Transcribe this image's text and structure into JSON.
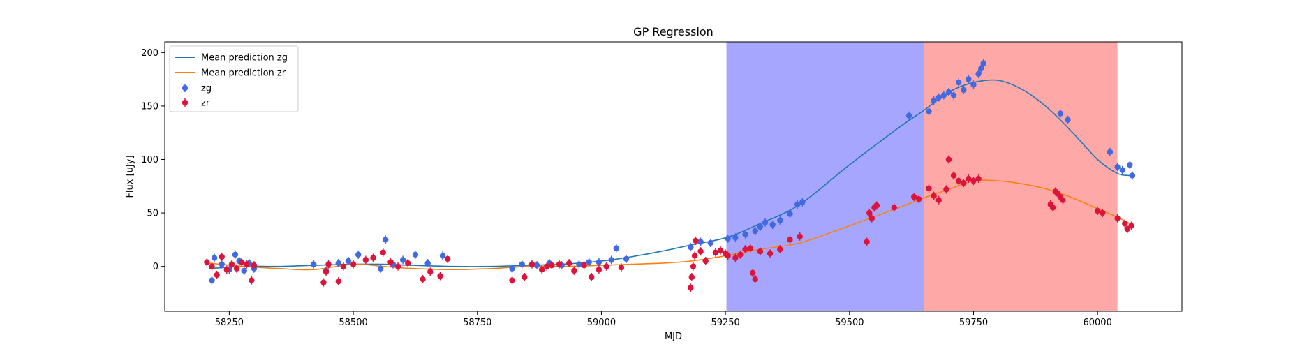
{
  "chart_data": {
    "type": "scatter",
    "title": "GP Regression",
    "xlabel": "MJD",
    "ylabel": "Flux [uJy]",
    "xlim": [
      58120,
      60170
    ],
    "ylim": [
      -42,
      210
    ],
    "xticks": [
      58250,
      58500,
      58750,
      59000,
      59250,
      59500,
      59750,
      60000
    ],
    "yticks": [
      0,
      50,
      100,
      150,
      200
    ],
    "grid": false,
    "legend_position": "top-left",
    "legend": [
      "Mean prediction zg",
      "Mean prediction zr",
      "zg",
      "zr"
    ],
    "colors": {
      "zg_line": "#1f77b4",
      "zr_line": "#ff7f0e",
      "zg_points": "#4169e1",
      "zr_points": "#dc143c",
      "blue_band": "#7777ff",
      "red_band": "#ff6e6e"
    },
    "shaded_regions": [
      {
        "x0": 59252,
        "x1": 59650,
        "color": "#7777ff",
        "opacity": 0.65
      },
      {
        "x0": 59650,
        "x1": 60040,
        "color": "#ff6e6e",
        "opacity": 0.6
      }
    ],
    "series": [
      {
        "name": "Mean prediction zg",
        "kind": "line",
        "x": [
          58210,
          58280,
          58350,
          58420,
          58500,
          58560,
          58620,
          58700,
          58780,
          58850,
          58920,
          59000,
          59060,
          59120,
          59180,
          59252,
          59320,
          59400,
          59500,
          59600,
          59650,
          59700,
          59750,
          59800,
          59850,
          59900,
          59950,
          60000,
          60040,
          60065
        ],
        "y": [
          -2,
          0,
          0,
          1,
          2,
          2,
          1,
          0,
          0,
          1,
          2,
          5,
          9,
          14,
          20,
          27,
          40,
          58,
          95,
          130,
          146,
          163,
          172,
          174,
          165,
          148,
          125,
          100,
          87,
          85
        ]
      },
      {
        "name": "Mean prediction zr",
        "kind": "line",
        "x": [
          58210,
          58280,
          58350,
          58420,
          58500,
          58560,
          58620,
          58700,
          58780,
          58850,
          58920,
          59000,
          59060,
          59120,
          59180,
          59252,
          59320,
          59400,
          59500,
          59600,
          59650,
          59700,
          59750,
          59800,
          59850,
          59900,
          59950,
          60000,
          60040,
          60065
        ],
        "y": [
          3,
          0,
          -2,
          -3,
          2,
          0,
          -2,
          -3,
          -2,
          0,
          0,
          1,
          2,
          3,
          5,
          10,
          16,
          22,
          38,
          55,
          64,
          72,
          80,
          80,
          77,
          72,
          64,
          54,
          46,
          40
        ]
      },
      {
        "name": "zg",
        "kind": "points",
        "points": [
          [
            58215,
            -13
          ],
          [
            58220,
            8
          ],
          [
            58235,
            2
          ],
          [
            58250,
            -3
          ],
          [
            58262,
            11
          ],
          [
            58270,
            5
          ],
          [
            58280,
            -4
          ],
          [
            58290,
            3
          ],
          [
            58300,
            -2
          ],
          [
            58420,
            2
          ],
          [
            58445,
            -4
          ],
          [
            58470,
            3
          ],
          [
            58490,
            5
          ],
          [
            58510,
            11
          ],
          [
            58555,
            -2
          ],
          [
            58565,
            25
          ],
          [
            58580,
            2
          ],
          [
            58600,
            6
          ],
          [
            58625,
            11
          ],
          [
            58650,
            3
          ],
          [
            58680,
            10
          ],
          [
            58820,
            -2
          ],
          [
            58840,
            2
          ],
          [
            58870,
            1
          ],
          [
            58895,
            3
          ],
          [
            58920,
            1
          ],
          [
            58955,
            2
          ],
          [
            58975,
            4
          ],
          [
            58995,
            4
          ],
          [
            59020,
            6
          ],
          [
            59030,
            17
          ],
          [
            59050,
            7
          ],
          [
            59180,
            18
          ],
          [
            59200,
            23
          ],
          [
            59220,
            22
          ],
          [
            59255,
            26
          ],
          [
            59270,
            27
          ],
          [
            59290,
            30
          ],
          [
            59310,
            33
          ],
          [
            59320,
            37
          ],
          [
            59330,
            41
          ],
          [
            59345,
            39
          ],
          [
            59360,
            43
          ],
          [
            59380,
            49
          ],
          [
            59395,
            58
          ],
          [
            59405,
            60
          ],
          [
            59620,
            141
          ],
          [
            59660,
            145
          ],
          [
            59670,
            155
          ],
          [
            59680,
            158
          ],
          [
            59690,
            160
          ],
          [
            59700,
            163
          ],
          [
            59710,
            160
          ],
          [
            59720,
            172
          ],
          [
            59730,
            165
          ],
          [
            59740,
            175
          ],
          [
            59750,
            170
          ],
          [
            59760,
            180
          ],
          [
            59765,
            185
          ],
          [
            59770,
            190
          ],
          [
            59925,
            143
          ],
          [
            59940,
            137
          ],
          [
            60025,
            107
          ],
          [
            60040,
            93
          ],
          [
            60050,
            90
          ],
          [
            60065,
            95
          ],
          [
            60070,
            85
          ]
        ]
      },
      {
        "name": "zr",
        "kind": "points",
        "points": [
          [
            58205,
            4
          ],
          [
            58215,
            0
          ],
          [
            58225,
            -8
          ],
          [
            58235,
            9
          ],
          [
            58245,
            -3
          ],
          [
            58255,
            2
          ],
          [
            58265,
            -2
          ],
          [
            58275,
            4
          ],
          [
            58285,
            2
          ],
          [
            58295,
            -13
          ],
          [
            58300,
            1
          ],
          [
            58440,
            -15
          ],
          [
            58445,
            -5
          ],
          [
            58450,
            2
          ],
          [
            58470,
            -14
          ],
          [
            58480,
            0
          ],
          [
            58500,
            2
          ],
          [
            58525,
            6
          ],
          [
            58540,
            8
          ],
          [
            58560,
            13
          ],
          [
            58575,
            4
          ],
          [
            58590,
            0
          ],
          [
            58610,
            3
          ],
          [
            58640,
            -12
          ],
          [
            58655,
            -5
          ],
          [
            58675,
            -9
          ],
          [
            58690,
            7
          ],
          [
            58820,
            -13
          ],
          [
            58845,
            -10
          ],
          [
            58860,
            2
          ],
          [
            58880,
            -3
          ],
          [
            58890,
            0
          ],
          [
            58900,
            1
          ],
          [
            58915,
            2
          ],
          [
            58935,
            3
          ],
          [
            58945,
            -4
          ],
          [
            58965,
            1
          ],
          [
            58980,
            -10
          ],
          [
            58995,
            -3
          ],
          [
            59010,
            0
          ],
          [
            59040,
            -1
          ],
          [
            59180,
            -20
          ],
          [
            59182,
            -10
          ],
          [
            59185,
            0
          ],
          [
            59188,
            10
          ],
          [
            59190,
            24
          ],
          [
            59200,
            14
          ],
          [
            59210,
            5
          ],
          [
            59230,
            13
          ],
          [
            59240,
            15
          ],
          [
            59250,
            12
          ],
          [
            59255,
            10
          ],
          [
            59270,
            8
          ],
          [
            59280,
            11
          ],
          [
            59290,
            16
          ],
          [
            59300,
            17
          ],
          [
            59305,
            -6
          ],
          [
            59310,
            -12
          ],
          [
            59320,
            14
          ],
          [
            59340,
            12
          ],
          [
            59360,
            16
          ],
          [
            59380,
            25
          ],
          [
            59400,
            28
          ],
          [
            59535,
            23
          ],
          [
            59540,
            50
          ],
          [
            59545,
            45
          ],
          [
            59550,
            55
          ],
          [
            59555,
            57
          ],
          [
            59590,
            55
          ],
          [
            59630,
            65
          ],
          [
            59640,
            63
          ],
          [
            59660,
            73
          ],
          [
            59670,
            66
          ],
          [
            59680,
            62
          ],
          [
            59695,
            72
          ],
          [
            59700,
            100
          ],
          [
            59710,
            85
          ],
          [
            59720,
            80
          ],
          [
            59730,
            78
          ],
          [
            59740,
            82
          ],
          [
            59750,
            80
          ],
          [
            59760,
            82
          ],
          [
            59905,
            58
          ],
          [
            59910,
            55
          ],
          [
            59915,
            70
          ],
          [
            59920,
            68
          ],
          [
            59925,
            65
          ],
          [
            59930,
            62
          ],
          [
            60000,
            52
          ],
          [
            60010,
            50
          ],
          [
            60040,
            45
          ],
          [
            60055,
            40
          ],
          [
            60060,
            35
          ],
          [
            60068,
            38
          ]
        ]
      }
    ]
  }
}
